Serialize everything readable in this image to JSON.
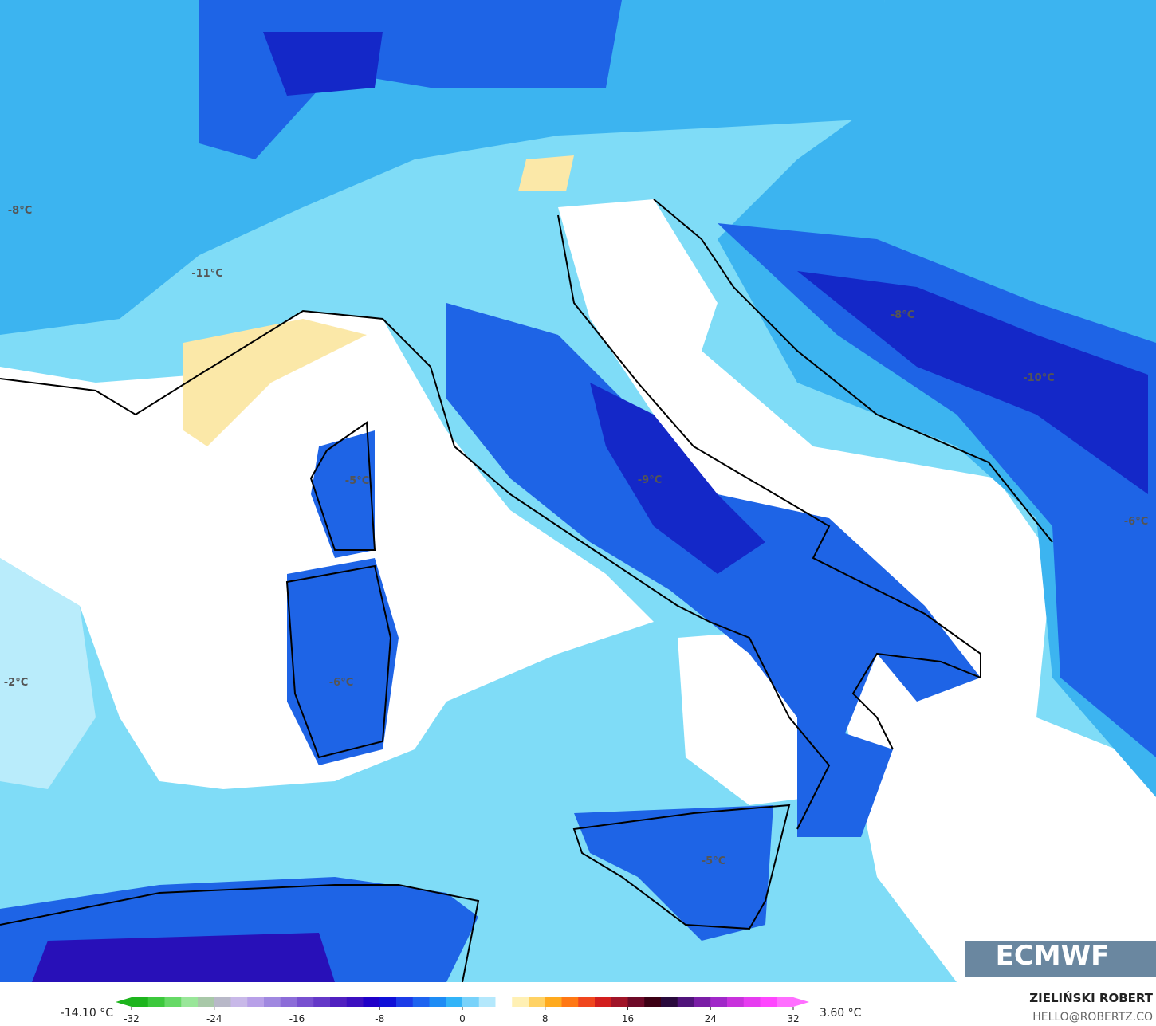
{
  "map": {
    "labels": [
      "-8°C",
      "-11°C",
      "-8°C",
      "-10°C",
      "-9°C",
      "-5°C",
      "-6°C",
      "-6°C",
      "-2°C",
      "-5°C"
    ]
  },
  "colorbar": {
    "min_label": "-14.10 °C",
    "max_label": "3.60 °C",
    "range": [
      -32,
      32
    ],
    "ticks": [
      -32,
      -24,
      -16,
      -8,
      0,
      8,
      16,
      24,
      32
    ],
    "colors": [
      "#1db41d",
      "#3cc83c",
      "#66d966",
      "#99e699",
      "#a8c8a8",
      "#b8b8c8",
      "#c8b8e8",
      "#b8a0e8",
      "#a088e0",
      "#8c6cd8",
      "#7850d0",
      "#6438c8",
      "#5020c0",
      "#3c10c0",
      "#2000c8",
      "#1010d8",
      "#1c3ce8",
      "#1e64f0",
      "#1e8cf5",
      "#32b4f8",
      "#78d2fa",
      "#b4e8fc",
      "#ffffff",
      "#fff0b4",
      "#ffd264",
      "#ffaa1e",
      "#ff7814",
      "#f0461e",
      "#d21e1e",
      "#a01428",
      "#6e0a28",
      "#3c0014"
    ],
    "colors_hi": [
      "#2a0a3c",
      "#50147a",
      "#7a1ea6",
      "#a028c8",
      "#c832dc",
      "#e63cf0",
      "#ff46ff",
      "#ff6eff"
    ]
  },
  "branding": {
    "logo": "ECMWF",
    "author": "ZIELIŃSKI ROBERT",
    "contact": "HELLO@ROBERTZ.CO"
  }
}
